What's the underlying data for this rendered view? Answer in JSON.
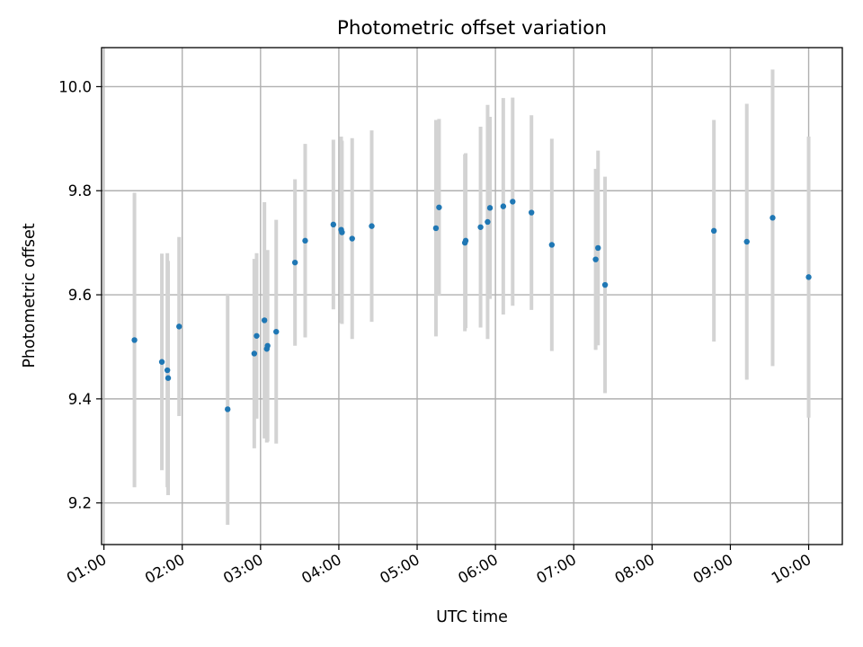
{
  "chart_data": {
    "type": "scatter",
    "title": "Photometric offset variation",
    "xlabel": "UTC time",
    "ylabel": "Photometric offset",
    "x_unit": "UTC hour",
    "x_ticks": [
      {
        "value": 1,
        "label": "01:00"
      },
      {
        "value": 2,
        "label": "02:00"
      },
      {
        "value": 3,
        "label": "03:00"
      },
      {
        "value": 4,
        "label": "04:00"
      },
      {
        "value": 5,
        "label": "05:00"
      },
      {
        "value": 6,
        "label": "06:00"
      },
      {
        "value": 7,
        "label": "07:00"
      },
      {
        "value": 8,
        "label": "08:00"
      },
      {
        "value": 9,
        "label": "09:00"
      },
      {
        "value": 10,
        "label": "10:00"
      }
    ],
    "y_ticks": [
      {
        "value": 9.2,
        "label": "9.2"
      },
      {
        "value": 9.4,
        "label": "9.4"
      },
      {
        "value": 9.6,
        "label": "9.6"
      },
      {
        "value": 9.8,
        "label": "9.8"
      },
      {
        "value": 10.0,
        "label": "10.0"
      }
    ],
    "xlim": [
      0.97,
      10.43
    ],
    "ylim": [
      9.12,
      10.075
    ],
    "grid": true,
    "point_color": "#1f77b4",
    "errorbar_color": "#d3d3d3",
    "points": [
      {
        "x": 1.39,
        "y": 9.513,
        "err": 0.283
      },
      {
        "x": 1.74,
        "y": 9.471,
        "err": 0.208
      },
      {
        "x": 1.81,
        "y": 9.455,
        "err": 0.225
      },
      {
        "x": 1.82,
        "y": 9.44,
        "err": 0.225
      },
      {
        "x": 1.96,
        "y": 9.539,
        "err": 0.172
      },
      {
        "x": 2.58,
        "y": 9.38,
        "err": 0.222
      },
      {
        "x": 2.92,
        "y": 9.487,
        "err": 0.182
      },
      {
        "x": 2.95,
        "y": 9.521,
        "err": 0.159
      },
      {
        "x": 3.05,
        "y": 9.551,
        "err": 0.227
      },
      {
        "x": 3.08,
        "y": 9.496,
        "err": 0.18
      },
      {
        "x": 3.09,
        "y": 9.502,
        "err": 0.184
      },
      {
        "x": 3.2,
        "y": 9.529,
        "err": 0.215
      },
      {
        "x": 3.44,
        "y": 9.662,
        "err": 0.16
      },
      {
        "x": 3.57,
        "y": 9.704,
        "err": 0.186
      },
      {
        "x": 3.93,
        "y": 9.735,
        "err": 0.163
      },
      {
        "x": 4.03,
        "y": 9.725,
        "err": 0.179
      },
      {
        "x": 4.04,
        "y": 9.72,
        "err": 0.176
      },
      {
        "x": 4.17,
        "y": 9.708,
        "err": 0.193
      },
      {
        "x": 4.42,
        "y": 9.732,
        "err": 0.184
      },
      {
        "x": 5.24,
        "y": 9.728,
        "err": 0.208
      },
      {
        "x": 5.28,
        "y": 9.768,
        "err": 0.17
      },
      {
        "x": 5.61,
        "y": 9.7,
        "err": 0.17
      },
      {
        "x": 5.62,
        "y": 9.704,
        "err": 0.168
      },
      {
        "x": 5.81,
        "y": 9.73,
        "err": 0.193
      },
      {
        "x": 5.9,
        "y": 9.74,
        "err": 0.225
      },
      {
        "x": 5.93,
        "y": 9.767,
        "err": 0.175
      },
      {
        "x": 6.1,
        "y": 9.77,
        "err": 0.208
      },
      {
        "x": 6.22,
        "y": 9.779,
        "err": 0.2
      },
      {
        "x": 6.46,
        "y": 9.758,
        "err": 0.187
      },
      {
        "x": 6.72,
        "y": 9.696,
        "err": 0.204
      },
      {
        "x": 7.28,
        "y": 9.668,
        "err": 0.174
      },
      {
        "x": 7.31,
        "y": 9.69,
        "err": 0.187
      },
      {
        "x": 7.4,
        "y": 9.619,
        "err": 0.208
      },
      {
        "x": 8.79,
        "y": 9.723,
        "err": 0.213
      },
      {
        "x": 9.21,
        "y": 9.702,
        "err": 0.265
      },
      {
        "x": 9.54,
        "y": 9.748,
        "err": 0.285
      },
      {
        "x": 10.0,
        "y": 9.634,
        "err": 0.27
      }
    ]
  }
}
